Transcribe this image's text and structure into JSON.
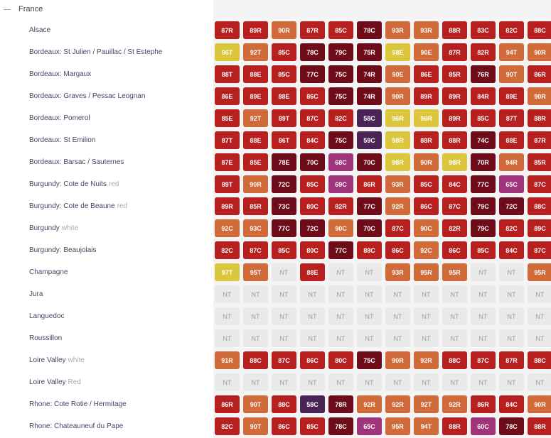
{
  "region": {
    "name": "France"
  },
  "colors": {
    "outstanding": "#dcc63b",
    "very_good": "#d06a38",
    "good": "#b81f1f",
    "above_average": "#6f0c1a",
    "average": "#a0347a",
    "below_average": "#4b2456",
    "not_tasted": "#e9e9e9"
  },
  "rows": [
    {
      "name": "Alsace",
      "note": "",
      "cells": [
        "87R",
        "89R",
        "90R",
        "87R",
        "85C",
        "78C",
        "93R",
        "93R",
        "88R",
        "83C",
        "82C",
        "88C"
      ]
    },
    {
      "name": "Bordeaux: St Julien / Pauillac / St Estephe",
      "note": "",
      "cells": [
        "96T",
        "92T",
        "85C",
        "78C",
        "79C",
        "75R",
        "98E",
        "90E",
        "87R",
        "82R",
        "94T",
        "90R"
      ]
    },
    {
      "name": "Bordeaux: Margaux",
      "note": "",
      "cells": [
        "88T",
        "88E",
        "85C",
        "77C",
        "75C",
        "74R",
        "90E",
        "86E",
        "85R",
        "76R",
        "90T",
        "86R"
      ]
    },
    {
      "name": "Bordeaux: Graves / Pessac Leognan",
      "note": "",
      "cells": [
        "86E",
        "89E",
        "88E",
        "86C",
        "75C",
        "74R",
        "90R",
        "89R",
        "89R",
        "84R",
        "89E",
        "90R"
      ]
    },
    {
      "name": "Bordeaux: Pomerol",
      "note": "",
      "cells": [
        "85E",
        "92T",
        "89T",
        "87C",
        "82C",
        "58C",
        "96R",
        "96R",
        "89R",
        "85C",
        "87T",
        "88R"
      ]
    },
    {
      "name": "Bordeaux: St Emilion",
      "note": "",
      "cells": [
        "87T",
        "88E",
        "86T",
        "84C",
        "75C",
        "59C",
        "98R",
        "88R",
        "88R",
        "74C",
        "88E",
        "87R"
      ]
    },
    {
      "name": "Bordeaux: Barsac / Sauternes",
      "note": "",
      "cells": [
        "87E",
        "85E",
        "78E",
        "70C",
        "68C",
        "70C",
        "98R",
        "90R",
        "98R",
        "70R",
        "94R",
        "85R"
      ]
    },
    {
      "name": "Burgundy: Cote de Nuits",
      "note": "red",
      "cells": [
        "89T",
        "90R",
        "72C",
        "85C",
        "69C",
        "86R",
        "93R",
        "85C",
        "84C",
        "77C",
        "65C",
        "87C"
      ]
    },
    {
      "name": "Burgundy: Cote de Beaune",
      "note": "red",
      "cells": [
        "89R",
        "85R",
        "73C",
        "80C",
        "82R",
        "77C",
        "92R",
        "86C",
        "87C",
        "79C",
        "72C",
        "88C"
      ]
    },
    {
      "name": "Burgundy",
      "note": "white",
      "cells": [
        "92C",
        "93C",
        "77C",
        "72C",
        "90C",
        "70C",
        "87C",
        "90C",
        "82R",
        "79C",
        "82C",
        "89C"
      ]
    },
    {
      "name": "Burgundy: Beaujolais",
      "note": "",
      "cells": [
        "82C",
        "87C",
        "85C",
        "80C",
        "77C",
        "88C",
        "86C",
        "92C",
        "86C",
        "85C",
        "84C",
        "87C"
      ]
    },
    {
      "name": "Champagne",
      "note": "",
      "cells": [
        "97T",
        "95T",
        "NT",
        "88E",
        "NT",
        "NT",
        "93R",
        "95R",
        "95R",
        "NT",
        "NT",
        "95R"
      ]
    },
    {
      "name": "Jura",
      "note": "",
      "cells": [
        "NT",
        "NT",
        "NT",
        "NT",
        "NT",
        "NT",
        "NT",
        "NT",
        "NT",
        "NT",
        "NT",
        "NT"
      ]
    },
    {
      "name": "Languedoc",
      "note": "",
      "cells": [
        "NT",
        "NT",
        "NT",
        "NT",
        "NT",
        "NT",
        "NT",
        "NT",
        "NT",
        "NT",
        "NT",
        "NT"
      ]
    },
    {
      "name": "Roussillon",
      "note": "",
      "cells": [
        "NT",
        "NT",
        "NT",
        "NT",
        "NT",
        "NT",
        "NT",
        "NT",
        "NT",
        "NT",
        "NT",
        "NT"
      ]
    },
    {
      "name": "Loire Valley",
      "note": "white",
      "cells": [
        "91R",
        "88C",
        "87C",
        "86C",
        "80C",
        "75C",
        "90R",
        "92R",
        "88C",
        "87C",
        "87R",
        "88C"
      ]
    },
    {
      "name": "Loire Valley",
      "note": "Red",
      "cells": [
        "NT",
        "NT",
        "NT",
        "NT",
        "NT",
        "NT",
        "NT",
        "NT",
        "NT",
        "NT",
        "NT",
        "NT"
      ]
    },
    {
      "name": "Rhone: Cote Rotie / Hermitage",
      "note": "",
      "cells": [
        "86R",
        "90T",
        "88C",
        "58C",
        "78R",
        "92R",
        "92R",
        "92T",
        "92R",
        "86R",
        "84C",
        "90R"
      ]
    },
    {
      "name": "Rhone: Chateauneuf du Pape",
      "note": "",
      "cells": [
        "82C",
        "90T",
        "86C",
        "85C",
        "78C",
        "65C",
        "95R",
        "94T",
        "88R",
        "60C",
        "78C",
        "88R"
      ]
    }
  ]
}
